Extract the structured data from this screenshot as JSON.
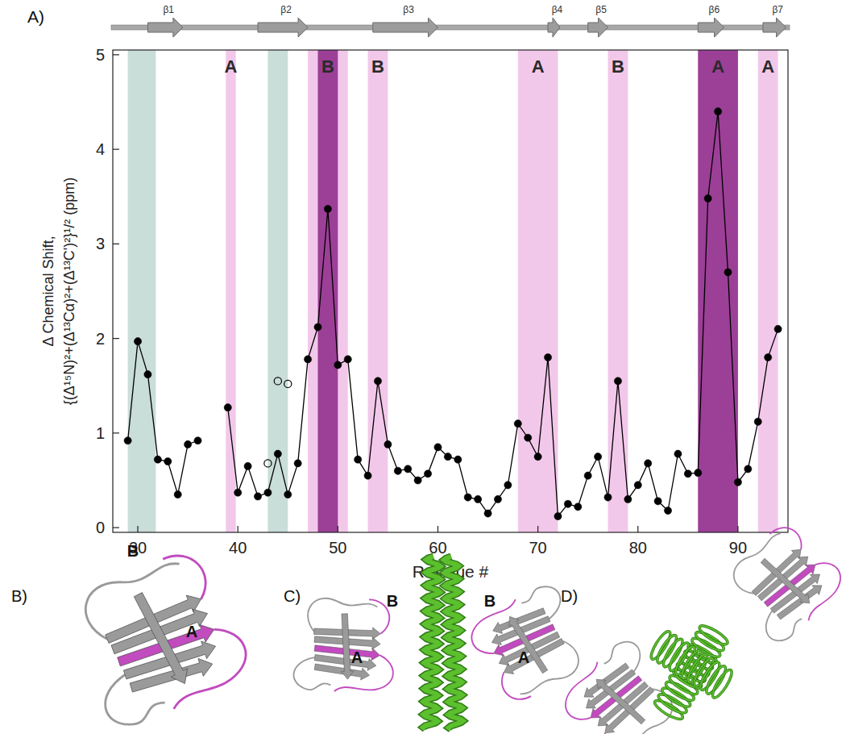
{
  "chart_data": {
    "type": "line",
    "panel_label": "A)",
    "x_label": "Residue #",
    "y_label": [
      "Δ Chemical Shift,",
      "{(Δ¹⁵N)²+(Δ¹³Cα)²+(Δ¹³C')²}¹/² (ppm)"
    ],
    "xlim": [
      27.5,
      95
    ],
    "ylim": [
      -0.05,
      5.05
    ],
    "xticks": [
      30,
      40,
      50,
      60,
      70,
      80,
      90
    ],
    "yticks": [
      0,
      1,
      2,
      3,
      4,
      5
    ],
    "series": [
      {
        "color": "#000000",
        "marker": "circle",
        "line_style": "solid",
        "x": [
          29,
          30,
          31,
          32,
          33,
          34,
          35,
          36,
          37,
          38,
          39,
          40,
          41,
          42,
          43,
          44,
          45,
          46,
          47,
          48,
          49,
          50,
          51,
          52,
          53,
          54,
          55,
          56,
          57,
          58,
          59,
          60,
          61,
          62,
          63,
          64,
          65,
          66,
          67,
          68,
          69,
          70,
          71,
          72,
          73,
          74,
          75,
          76,
          77,
          78,
          79,
          80,
          81,
          82,
          83,
          84,
          85,
          86,
          87,
          88,
          89,
          90,
          91,
          92,
          93,
          94
        ],
        "values": [
          0.92,
          1.97,
          1.62,
          0.72,
          0.7,
          0.35,
          0.88,
          0.92,
          null,
          null,
          1.27,
          0.37,
          0.65,
          0.33,
          0.37,
          0.78,
          0.35,
          0.68,
          1.78,
          2.12,
          3.37,
          1.72,
          1.78,
          0.72,
          0.55,
          1.55,
          0.88,
          0.6,
          0.62,
          0.5,
          0.57,
          0.85,
          0.75,
          0.72,
          0.32,
          0.3,
          0.15,
          0.3,
          0.45,
          1.1,
          0.95,
          0.75,
          1.8,
          0.12,
          0.25,
          0.22,
          0.55,
          0.75,
          0.32,
          1.55,
          0.3,
          0.45,
          0.68,
          0.28,
          0.18,
          0.78,
          0.57,
          0.58,
          3.48,
          4.4,
          2.7,
          0.48,
          0.62,
          1.12,
          1.8,
          2.1
        ]
      },
      {
        "color": "#000000",
        "marker": "open_circle",
        "line_style": "none",
        "x": [
          43,
          44,
          45
        ],
        "values": [
          0.68,
          1.55,
          1.52
        ]
      }
    ],
    "regions": [
      {
        "from": 29,
        "to": 31.8,
        "color": "#c9ddd9"
      },
      {
        "from": 43,
        "to": 45,
        "color": "#c9ddd9"
      },
      {
        "from": 38.8,
        "to": 39.8,
        "color": "#f2c8ea",
        "label": "A"
      },
      {
        "from": 47,
        "to": 51,
        "color": "#f2c8ea"
      },
      {
        "from": 48,
        "to": 50,
        "color": "#9c3f97",
        "label": "B"
      },
      {
        "from": 53,
        "to": 55,
        "color": "#f2c8ea",
        "label": "B"
      },
      {
        "from": 68,
        "to": 72,
        "color": "#f2c8ea",
        "label": "A"
      },
      {
        "from": 77,
        "to": 79,
        "color": "#f2c8ea",
        "label": "B"
      },
      {
        "from": 86,
        "to": 90,
        "color": "#9c3f97",
        "label": "A"
      },
      {
        "from": 92,
        "to": 94,
        "color": "#f2c8ea",
        "label": "A"
      }
    ],
    "secondary_structure": [
      {
        "label": "β1",
        "from": 31,
        "to": 34.5
      },
      {
        "label": "β2",
        "from": 42,
        "to": 47
      },
      {
        "label": "β3",
        "from": 53.5,
        "to": 60
      },
      {
        "label": "β4",
        "from": 71,
        "to": 72.2
      },
      {
        "label": "β5",
        "from": 75,
        "to": 77
      },
      {
        "label": "β6",
        "from": 86,
        "to": 88.6
      },
      {
        "label": "β7",
        "from": 92.5,
        "to": 94.8
      }
    ]
  },
  "structures": [
    {
      "label": "B)",
      "annotations": [
        "B",
        "A"
      ]
    },
    {
      "label": "C)",
      "annotations": [
        "B",
        "B",
        "A",
        "A"
      ]
    },
    {
      "label": "D)",
      "annotations": []
    }
  ]
}
